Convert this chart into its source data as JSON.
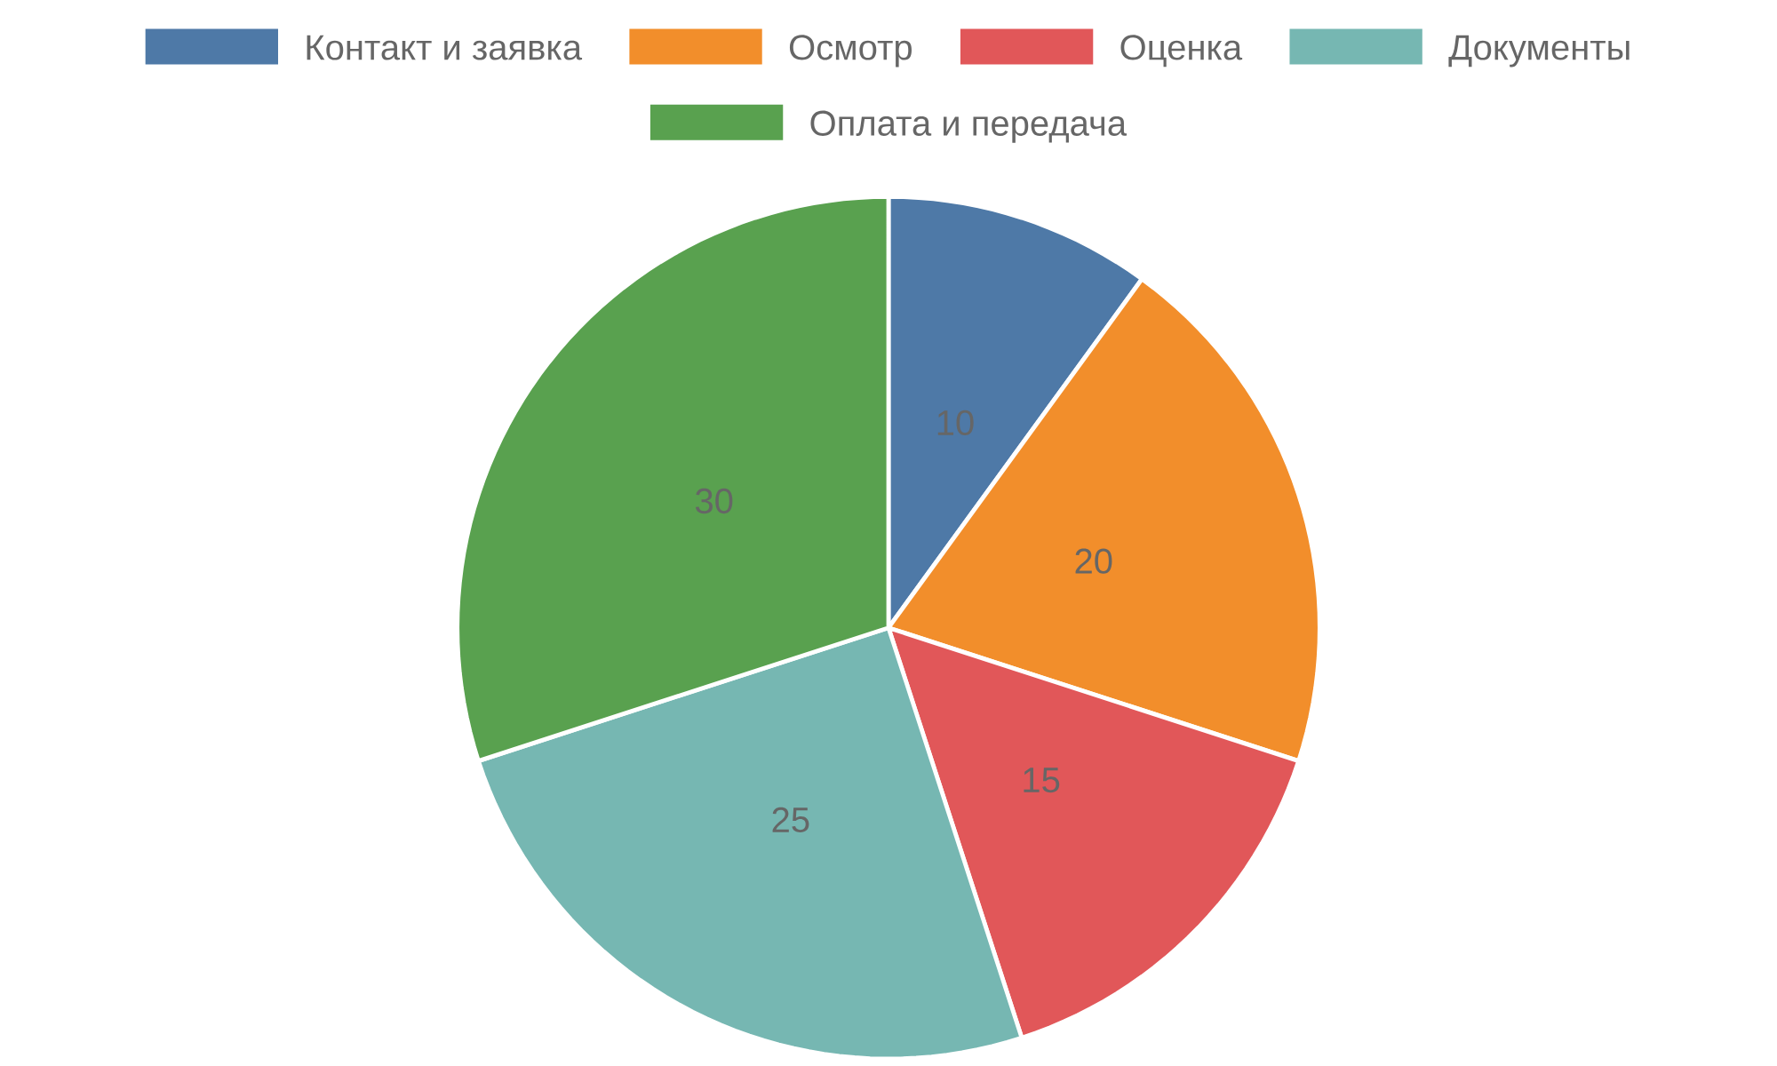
{
  "chart_data": {
    "type": "pie",
    "categories": [
      "Контакт и заявка",
      "Осмотр",
      "Оценка",
      "Документы",
      "Оплата и передача"
    ],
    "values": [
      10,
      20,
      15,
      25,
      30
    ],
    "colors": [
      "#4e79a7",
      "#f28e2b",
      "#e15759",
      "#76b7b2",
      "#59a14f"
    ],
    "data_labels": true,
    "legend": "top"
  }
}
